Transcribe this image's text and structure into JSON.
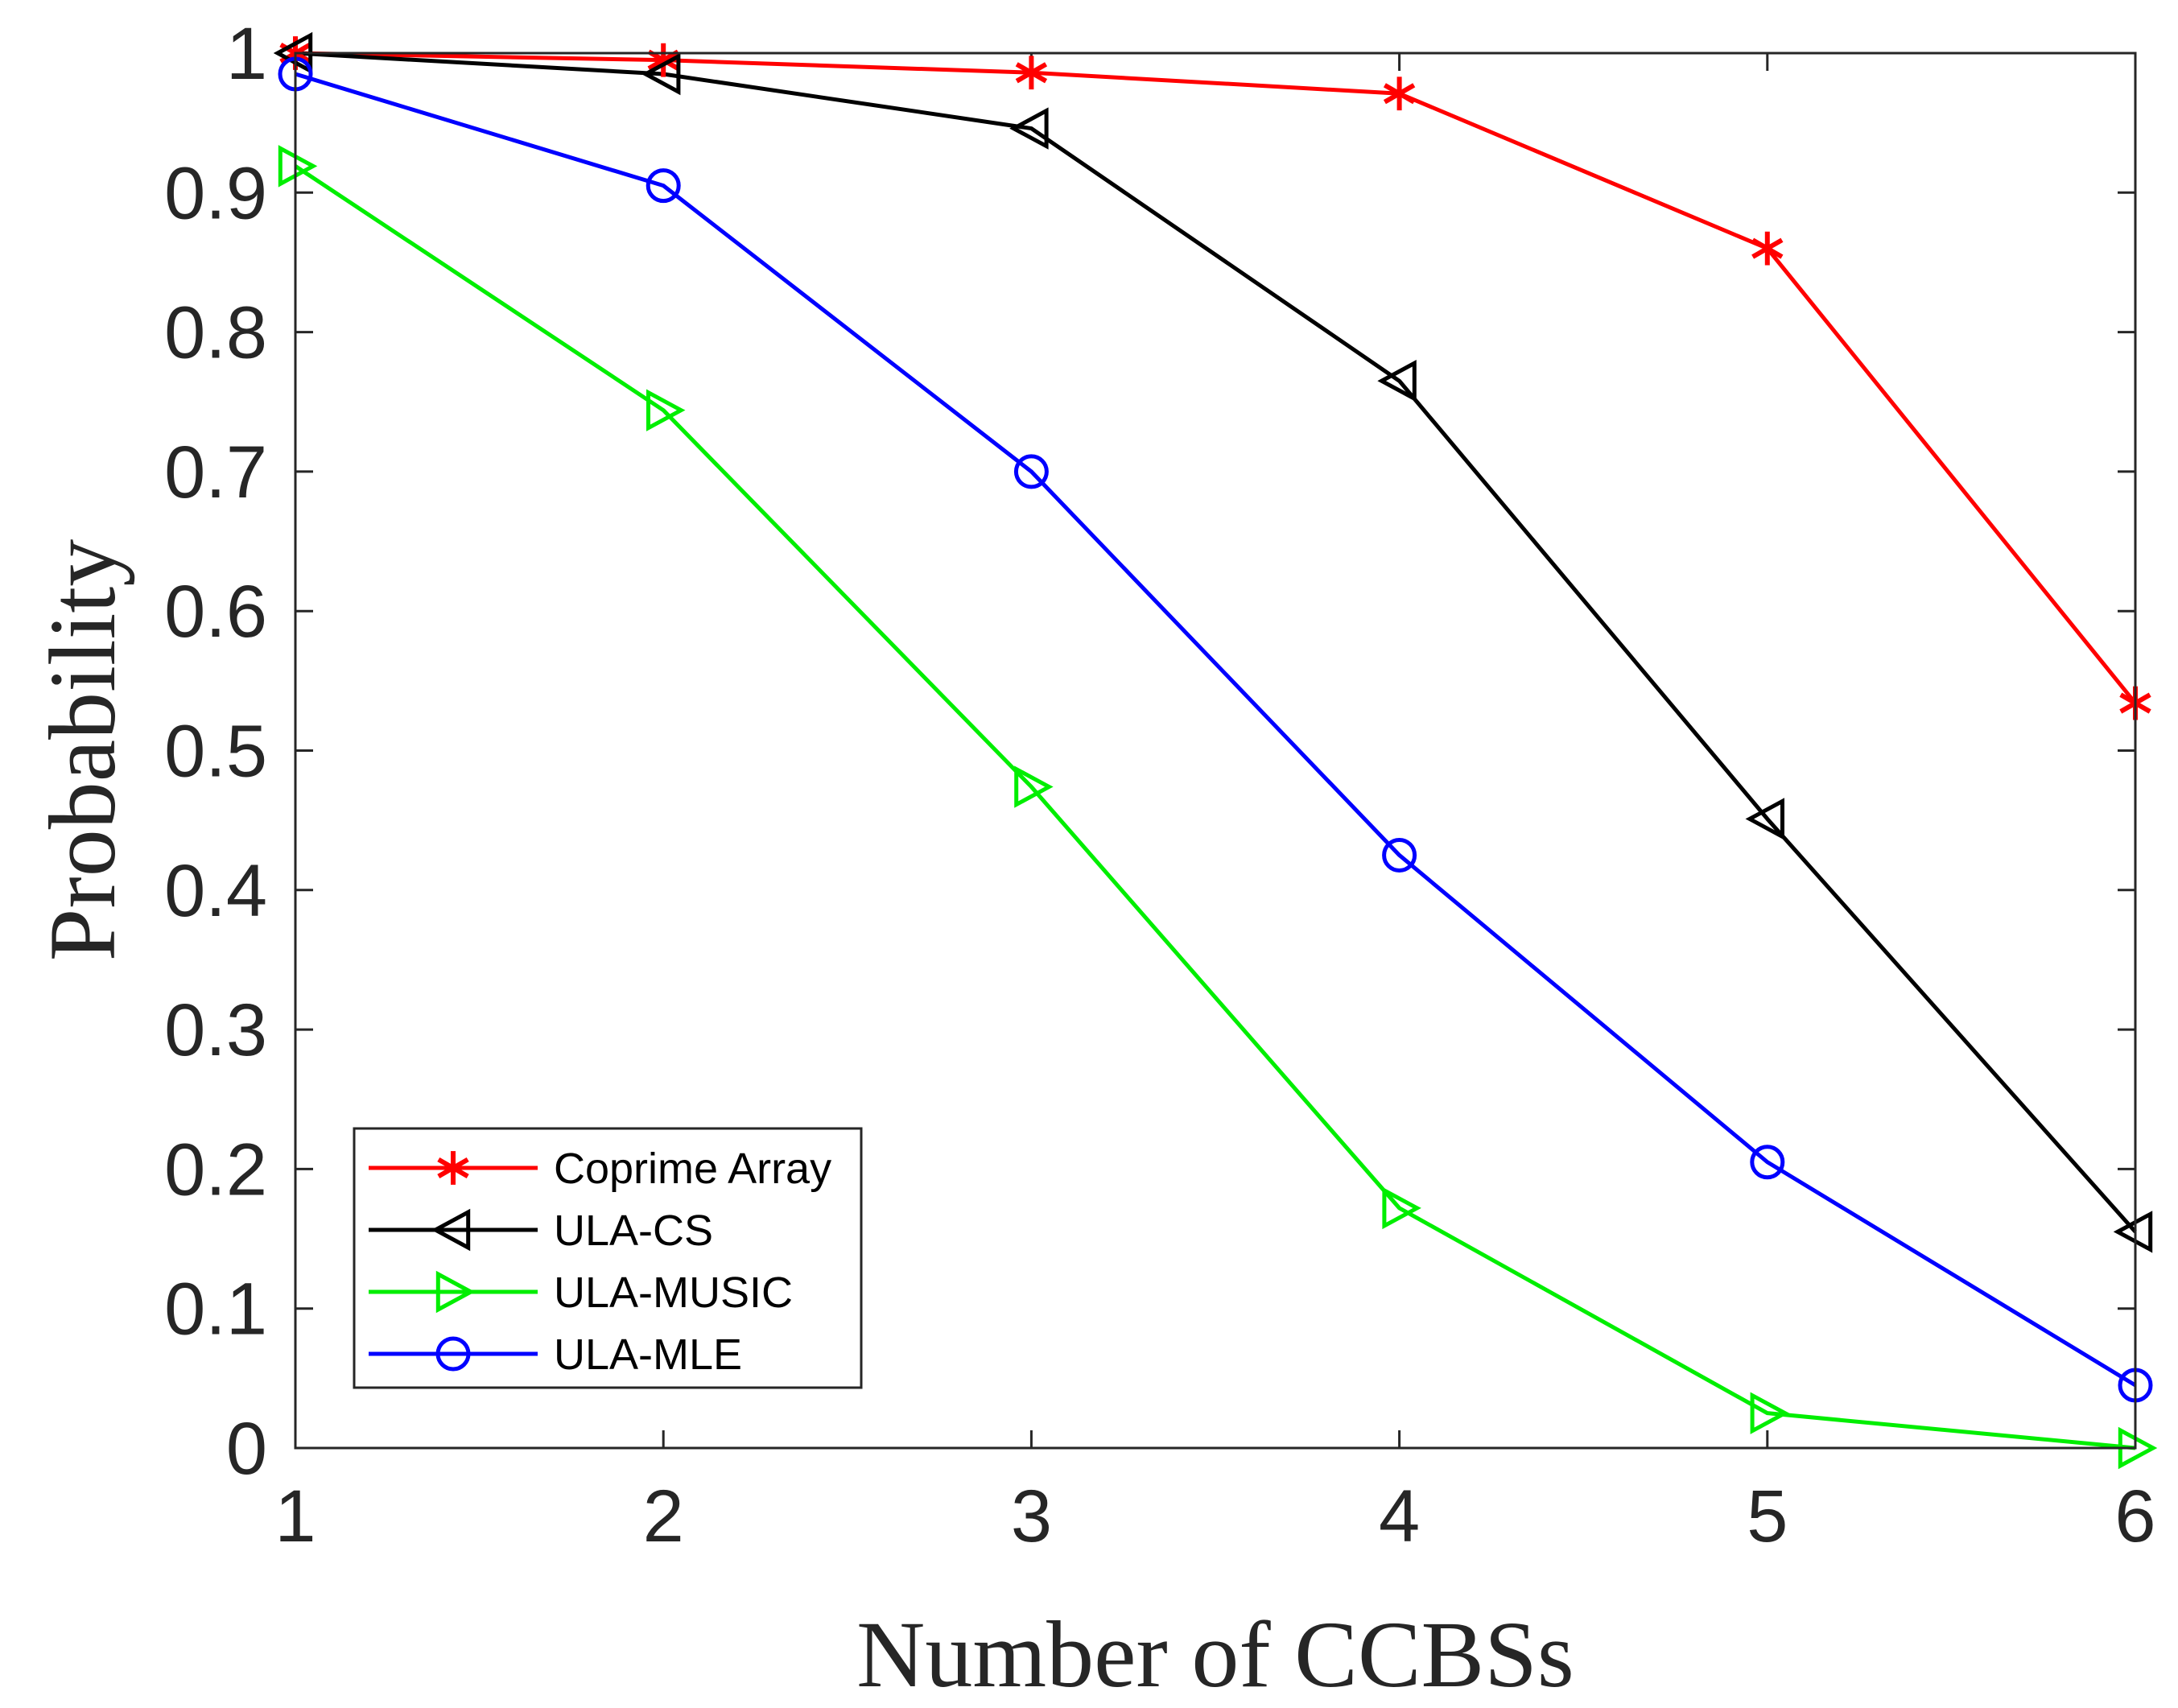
{
  "chart_data": {
    "type": "line",
    "title": "",
    "xlabel": "Number of CCBSs",
    "ylabel": "Probability",
    "x": [
      1,
      2,
      3,
      4,
      5,
      6
    ],
    "xlim": [
      1,
      6
    ],
    "ylim": [
      0,
      1
    ],
    "xticks": [
      "1",
      "2",
      "3",
      "4",
      "5",
      "6"
    ],
    "yticks": [
      "0",
      "0.1",
      "0.2",
      "0.3",
      "0.4",
      "0.5",
      "0.6",
      "0.7",
      "0.8",
      "0.9",
      "1"
    ],
    "grid": false,
    "legend_location": "bottom-left",
    "series": [
      {
        "name": "Coprime Array",
        "color": "#ff0000",
        "marker": "asterisk",
        "values": [
          1.0,
          0.995,
          0.986,
          0.971,
          0.86,
          0.534
        ]
      },
      {
        "name": "ULA-CS",
        "color": "#000000",
        "marker": "triangle-left",
        "values": [
          1.0,
          0.985,
          0.946,
          0.765,
          0.451,
          0.155
        ]
      },
      {
        "name": "ULA-MUSIC",
        "color": "#00ee00",
        "marker": "triangle-right",
        "values": [
          0.919,
          0.744,
          0.474,
          0.172,
          0.025,
          0.0
        ]
      },
      {
        "name": "ULA-MLE",
        "color": "#0000ff",
        "marker": "circle",
        "values": [
          0.985,
          0.905,
          0.7,
          0.425,
          0.205,
          0.045
        ]
      }
    ]
  }
}
